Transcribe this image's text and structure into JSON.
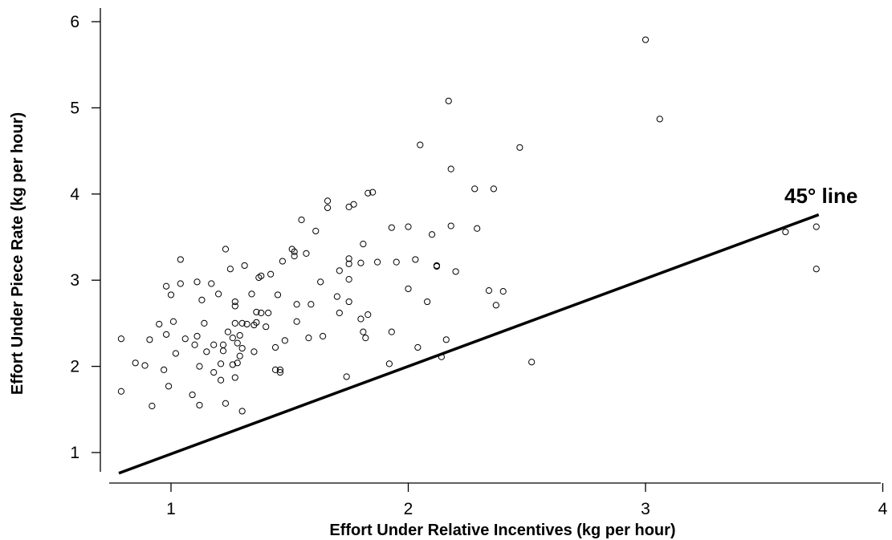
{
  "chart_data": {
    "type": "scatter",
    "xlabel": "Effort Under Relative Incentives (kg per hour)",
    "ylabel": "Effort Under Piece Rate  (kg per hour)",
    "xlim": [
      0.7,
      4.0
    ],
    "ylim": [
      0.6,
      6.2
    ],
    "x_ticks": [
      1,
      2,
      3,
      4
    ],
    "y_ticks": [
      1,
      2,
      3,
      4,
      5,
      6
    ],
    "reference_line": {
      "label": "45° line",
      "x": [
        0.78,
        3.73
      ],
      "y": [
        0.76,
        3.76
      ]
    },
    "marker": "hollow-circle",
    "grid": false,
    "points": [
      [
        0.79,
        2.32
      ],
      [
        0.79,
        1.71
      ],
      [
        0.85,
        2.04
      ],
      [
        0.89,
        2.01
      ],
      [
        0.91,
        2.31
      ],
      [
        0.92,
        1.54
      ],
      [
        0.95,
        2.49
      ],
      [
        0.97,
        1.96
      ],
      [
        0.98,
        2.93
      ],
      [
        0.98,
        2.37
      ],
      [
        0.99,
        1.77
      ],
      [
        1.0,
        2.83
      ],
      [
        1.01,
        2.52
      ],
      [
        1.02,
        2.15
      ],
      [
        1.04,
        2.96
      ],
      [
        1.04,
        3.24
      ],
      [
        1.06,
        2.32
      ],
      [
        1.09,
        1.67
      ],
      [
        1.1,
        2.25
      ],
      [
        1.11,
        2.98
      ],
      [
        1.11,
        2.35
      ],
      [
        1.12,
        1.55
      ],
      [
        1.12,
        2.0
      ],
      [
        1.13,
        2.77
      ],
      [
        1.14,
        2.5
      ],
      [
        1.15,
        2.17
      ],
      [
        1.17,
        2.96
      ],
      [
        1.18,
        1.93
      ],
      [
        1.18,
        2.25
      ],
      [
        1.2,
        2.84
      ],
      [
        1.21,
        1.84
      ],
      [
        1.21,
        2.03
      ],
      [
        1.22,
        2.25
      ],
      [
        1.22,
        2.18
      ],
      [
        1.23,
        3.36
      ],
      [
        1.23,
        1.57
      ],
      [
        1.24,
        2.4
      ],
      [
        1.25,
        3.13
      ],
      [
        1.26,
        2.33
      ],
      [
        1.26,
        2.02
      ],
      [
        1.27,
        2.75
      ],
      [
        1.27,
        2.7
      ],
      [
        1.27,
        2.5
      ],
      [
        1.27,
        1.87
      ],
      [
        1.28,
        2.27
      ],
      [
        1.28,
        2.04
      ],
      [
        1.29,
        2.36
      ],
      [
        1.29,
        2.12
      ],
      [
        1.3,
        2.5
      ],
      [
        1.3,
        2.21
      ],
      [
        1.3,
        1.48
      ],
      [
        1.31,
        3.17
      ],
      [
        1.32,
        2.49
      ],
      [
        1.34,
        2.84
      ],
      [
        1.35,
        2.48
      ],
      [
        1.35,
        2.17
      ],
      [
        1.36,
        2.63
      ],
      [
        1.36,
        2.51
      ],
      [
        1.37,
        3.03
      ],
      [
        1.38,
        3.05
      ],
      [
        1.38,
        2.62
      ],
      [
        1.4,
        2.46
      ],
      [
        1.41,
        2.62
      ],
      [
        1.42,
        3.07
      ],
      [
        1.44,
        1.96
      ],
      [
        1.44,
        2.22
      ],
      [
        1.45,
        2.83
      ],
      [
        1.46,
        1.96
      ],
      [
        1.46,
        1.93
      ],
      [
        1.47,
        3.22
      ],
      [
        1.48,
        2.3
      ],
      [
        1.51,
        3.36
      ],
      [
        1.52,
        3.33
      ],
      [
        1.52,
        3.28
      ],
      [
        1.53,
        2.72
      ],
      [
        1.53,
        2.52
      ],
      [
        1.55,
        3.7
      ],
      [
        1.57,
        3.31
      ],
      [
        1.58,
        2.33
      ],
      [
        1.59,
        2.72
      ],
      [
        1.61,
        3.57
      ],
      [
        1.63,
        2.98
      ],
      [
        1.64,
        2.35
      ],
      [
        1.66,
        3.92
      ],
      [
        1.66,
        3.84
      ],
      [
        1.7,
        2.81
      ],
      [
        1.71,
        3.11
      ],
      [
        1.71,
        2.62
      ],
      [
        1.74,
        1.88
      ],
      [
        1.75,
        3.85
      ],
      [
        1.75,
        3.25
      ],
      [
        1.75,
        3.19
      ],
      [
        1.75,
        3.01
      ],
      [
        1.75,
        2.75
      ],
      [
        1.77,
        3.88
      ],
      [
        1.8,
        3.2
      ],
      [
        1.8,
        2.55
      ],
      [
        1.81,
        3.42
      ],
      [
        1.81,
        2.4
      ],
      [
        1.82,
        2.33
      ],
      [
        1.83,
        4.01
      ],
      [
        1.83,
        2.6
      ],
      [
        1.85,
        4.02
      ],
      [
        1.87,
        3.21
      ],
      [
        1.92,
        2.03
      ],
      [
        1.93,
        3.61
      ],
      [
        1.93,
        2.4
      ],
      [
        1.95,
        3.21
      ],
      [
        2.0,
        3.62
      ],
      [
        2.0,
        2.9
      ],
      [
        2.03,
        3.24
      ],
      [
        2.04,
        2.22
      ],
      [
        2.05,
        4.57
      ],
      [
        2.08,
        2.75
      ],
      [
        2.1,
        3.53
      ],
      [
        2.12,
        3.17
      ],
      [
        2.12,
        3.16
      ],
      [
        2.14,
        2.11
      ],
      [
        2.16,
        2.31
      ],
      [
        2.17,
        5.08
      ],
      [
        2.18,
        4.29
      ],
      [
        2.18,
        3.63
      ],
      [
        2.2,
        3.1
      ],
      [
        2.28,
        4.06
      ],
      [
        2.29,
        3.6
      ],
      [
        2.34,
        2.88
      ],
      [
        2.36,
        4.06
      ],
      [
        2.37,
        2.71
      ],
      [
        2.4,
        2.87
      ],
      [
        2.47,
        4.54
      ],
      [
        2.52,
        2.05
      ],
      [
        3.0,
        5.79
      ],
      [
        3.06,
        4.87
      ],
      [
        3.59,
        3.56
      ],
      [
        3.72,
        3.62
      ],
      [
        3.72,
        3.13
      ]
    ]
  }
}
